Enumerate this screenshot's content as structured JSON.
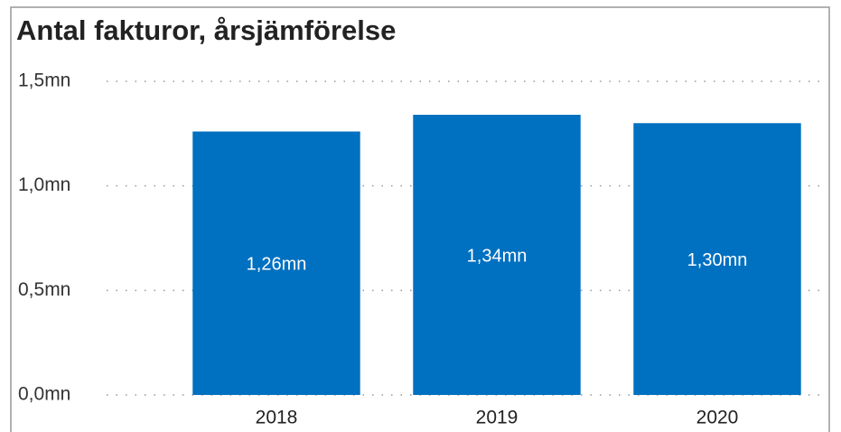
{
  "chart_data": {
    "type": "bar",
    "title": "Antal fakturor, årsjämförelse",
    "categories": [
      "2018",
      "2019",
      "2020"
    ],
    "values": [
      1.26,
      1.34,
      1.3
    ],
    "value_labels": [
      "1,26mn",
      "1,34mn",
      "1,30mn"
    ],
    "color": "#0070c0",
    "ylim": [
      0,
      1.5
    ],
    "yticks": [
      {
        "value": 0,
        "label": "0,0mn"
      },
      {
        "value": 0.5,
        "label": "0,5mn"
      },
      {
        "value": 1.0,
        "label": "1,0mn"
      },
      {
        "value": 1.5,
        "label": "1,5mn"
      }
    ],
    "grid": true
  }
}
